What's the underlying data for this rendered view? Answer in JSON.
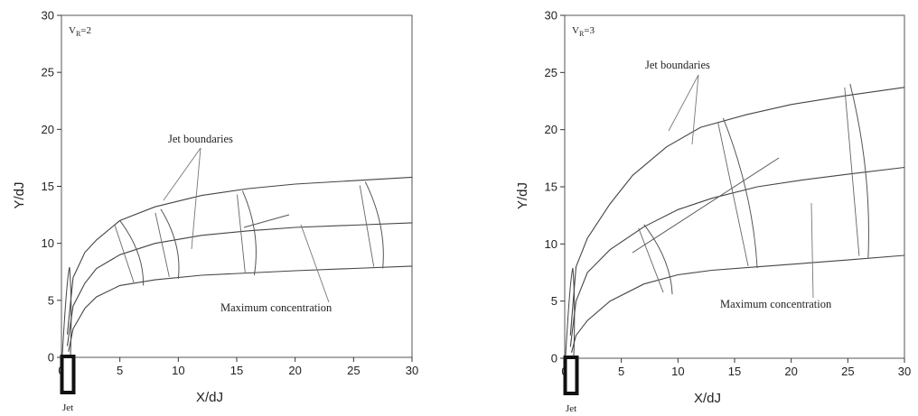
{
  "chart_data": [
    {
      "type": "line",
      "param_label": "V",
      "param_sub": "R",
      "param_value": "=2",
      "xlabel": "X/dJ",
      "ylabel": "Y/dJ",
      "xlim": [
        0,
        30
      ],
      "ylim": [
        0,
        30
      ],
      "xticks": [
        "0",
        "5",
        "10",
        "15",
        "20",
        "25",
        "30"
      ],
      "yticks": [
        "0",
        "5",
        "10",
        "15",
        "20",
        "25",
        "30"
      ],
      "jet_label": "Jet",
      "annotations": {
        "boundaries": "Jet boundaries",
        "maximum": "Maximum concentration"
      },
      "series": [
        {
          "x": [
            0.5,
            1,
            2,
            3,
            5,
            8,
            12,
            16,
            20,
            25,
            30
          ],
          "y": [
            2,
            7,
            9.2,
            10.3,
            12,
            13.2,
            14.2,
            14.8,
            15.2,
            15.5,
            15.8
          ]
        },
        {
          "x": [
            0.5,
            1,
            2,
            3,
            5,
            8,
            12,
            16,
            20,
            25,
            30
          ],
          "y": [
            1,
            4.5,
            6.5,
            7.8,
            9,
            10,
            10.7,
            11.1,
            11.4,
            11.6,
            11.8
          ]
        },
        {
          "x": [
            0.6,
            1,
            2,
            3,
            5,
            8,
            12,
            16,
            20,
            25,
            30
          ],
          "y": [
            0.5,
            2.5,
            4.3,
            5.3,
            6.3,
            6.8,
            7.2,
            7.4,
            7.6,
            7.8,
            8
          ]
        }
      ],
      "profiles": [
        {
          "x_top": 5,
          "y_top": 12,
          "x_bottom": 7,
          "y_bottom": 6.3
        },
        {
          "x_top": 8.5,
          "y_top": 13,
          "x_bottom": 10,
          "y_bottom": 6.9
        },
        {
          "x_top": 15.5,
          "y_top": 14.6,
          "x_bottom": 16.5,
          "y_bottom": 7.2
        },
        {
          "x_top": 26,
          "y_top": 15.4,
          "x_bottom": 27.5,
          "y_bottom": 7.8
        }
      ]
    },
    {
      "type": "line",
      "param_label": "V",
      "param_sub": "R",
      "param_value": "=3",
      "xlabel": "X/dJ",
      "ylabel": "Y/dJ",
      "xlim": [
        0,
        30
      ],
      "ylim": [
        0,
        30
      ],
      "xticks": [
        "0",
        "5",
        "10",
        "15",
        "20",
        "25",
        "30"
      ],
      "yticks": [
        "0",
        "5",
        "10",
        "15",
        "20",
        "25",
        "30"
      ],
      "jet_label": "Jet",
      "annotations": {
        "boundaries": "Jet boundaries",
        "maximum": "Maximum concentration"
      },
      "series": [
        {
          "x": [
            0.5,
            1,
            2,
            4,
            6,
            9,
            12,
            16,
            20,
            25,
            30
          ],
          "y": [
            2,
            8,
            10.5,
            13.5,
            16,
            18.5,
            20.2,
            21.3,
            22.2,
            23,
            23.7
          ]
        },
        {
          "x": [
            0.5,
            1,
            2,
            4,
            7,
            10,
            13,
            17,
            21,
            25,
            30
          ],
          "y": [
            1,
            5,
            7.5,
            9.5,
            11.5,
            13,
            14,
            15,
            15.6,
            16.1,
            16.7
          ]
        },
        {
          "x": [
            0.6,
            1,
            2,
            4,
            7,
            10,
            13,
            17,
            21,
            25,
            30
          ],
          "y": [
            0.5,
            2,
            3.3,
            5,
            6.5,
            7.3,
            7.7,
            8,
            8.3,
            8.6,
            9
          ]
        }
      ],
      "profiles": [
        {
          "x_top": 7,
          "y_top": 11.7,
          "x_bottom": 9.5,
          "y_bottom": 5.6
        },
        {
          "x_top": 14,
          "y_top": 21,
          "x_bottom": 17,
          "y_bottom": 7.9
        },
        {
          "x_top": 25.2,
          "y_top": 24,
          "x_bottom": 26.8,
          "y_bottom": 8.8
        }
      ]
    }
  ]
}
